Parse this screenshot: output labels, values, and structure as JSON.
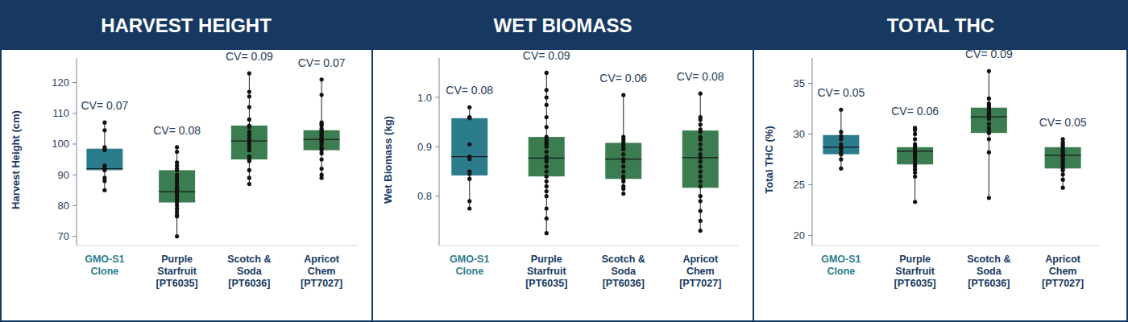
{
  "chart_data": [
    {
      "type": "box",
      "title": "HARVEST HEIGHT",
      "y_label": "Harvest Height (cm)",
      "categories": [
        "GMO-S1\nClone",
        "Purple\nStarfruit\n[PT6035]",
        "Scotch &\nSoda\n[PT6036]",
        "Apricot\nChem\n[PT7027]"
      ],
      "colors": [
        "#2b7d8e",
        "#3b7d50",
        "#3b7d50",
        "#3b7d50"
      ],
      "boxes": [
        {
          "min": 85,
          "q1": 91.5,
          "median": 92,
          "q3": 98.5,
          "max": 107
        },
        {
          "min": 70,
          "q1": 81,
          "median": 84.5,
          "q3": 91.5,
          "max": 99
        },
        {
          "min": 87,
          "q1": 95,
          "median": 101,
          "q3": 106,
          "max": 123
        },
        {
          "min": 89,
          "q1": 98,
          "median": 101.5,
          "q3": 104.5,
          "max": 121
        }
      ],
      "points": [
        [
          107,
          104.5,
          99,
          98.5,
          98,
          93,
          92,
          92,
          91.5,
          89,
          88,
          85
        ],
        [
          99,
          97.5,
          94,
          93,
          92,
          91.5,
          90,
          89,
          88,
          87,
          86,
          85.5,
          85,
          84.5,
          84,
          83,
          82,
          81.5,
          81,
          80,
          79,
          78,
          77,
          76.5,
          70
        ],
        [
          123,
          117,
          115.5,
          112,
          108,
          106,
          105.5,
          104,
          103,
          102,
          101,
          100,
          99,
          98,
          96,
          95,
          94.5,
          91.5,
          89,
          87
        ],
        [
          121,
          116,
          107,
          106.5,
          106,
          105,
          104.5,
          104,
          103.5,
          103,
          102.5,
          102,
          101.5,
          101,
          100.5,
          100,
          99,
          98.5,
          98,
          97,
          95,
          92,
          90,
          89
        ]
      ],
      "annotations": [
        "CV= 0.07",
        "CV= 0.08",
        "CV= 0.09",
        "CV= 0.07"
      ],
      "ylim": [
        67,
        128
      ],
      "yticks": [
        70,
        80,
        90,
        100,
        110,
        120
      ],
      "grid": false
    },
    {
      "type": "box",
      "title": "WET BIOMASS",
      "y_label": "Wet Biomass (kg)",
      "categories": [
        "GMO-S1\nClone",
        "Purple\nStarfruit\n[PT6035]",
        "Scotch &\nSoda\n[PT6036]",
        "Apricot\nChem\n[PT7027]"
      ],
      "colors": [
        "#2b7d8e",
        "#3b7d50",
        "#3b7d50",
        "#3b7d50"
      ],
      "boxes": [
        {
          "min": 0.775,
          "q1": 0.842,
          "median": 0.88,
          "q3": 0.958,
          "max": 0.98
        },
        {
          "min": 0.725,
          "q1": 0.84,
          "median": 0.877,
          "q3": 0.92,
          "max": 1.05
        },
        {
          "min": 0.805,
          "q1": 0.835,
          "median": 0.875,
          "q3": 0.908,
          "max": 1.005
        },
        {
          "min": 0.73,
          "q1": 0.817,
          "median": 0.878,
          "q3": 0.933,
          "max": 1.008
        }
      ],
      "points": [
        [
          0.98,
          0.96,
          0.958,
          0.905,
          0.88,
          0.875,
          0.85,
          0.845,
          0.835,
          0.79,
          0.775
        ],
        [
          1.05,
          1.015,
          1.0,
          0.985,
          0.96,
          0.94,
          0.92,
          0.915,
          0.91,
          0.905,
          0.9,
          0.89,
          0.88,
          0.875,
          0.87,
          0.86,
          0.85,
          0.84,
          0.83,
          0.82,
          0.81,
          0.8,
          0.775,
          0.755,
          0.725
        ],
        [
          1.005,
          0.92,
          0.915,
          0.91,
          0.905,
          0.9,
          0.895,
          0.885,
          0.875,
          0.87,
          0.86,
          0.85,
          0.84,
          0.835,
          0.83,
          0.82,
          0.815,
          0.805
        ],
        [
          1.008,
          0.96,
          0.955,
          0.945,
          0.935,
          0.93,
          0.92,
          0.915,
          0.905,
          0.895,
          0.885,
          0.878,
          0.87,
          0.86,
          0.85,
          0.84,
          0.83,
          0.82,
          0.8,
          0.79,
          0.77,
          0.75,
          0.73
        ]
      ],
      "annotations": [
        "CV= 0.08",
        "CV= 0.09",
        "CV= 0.06",
        "CV= 0.08"
      ],
      "ylim": [
        0.7,
        1.08
      ],
      "yticks": [
        0.8,
        0.9,
        {
          "value": 1,
          "label": "1.0"
        }
      ],
      "grid": false
    },
    {
      "type": "box",
      "title": "TOTAL THC",
      "y_label": "Total THC (%)",
      "categories": [
        "GMO-S1\nClone",
        "Purple\nStarfruit\n[PT6035]",
        "Scotch &\nSoda\n[PT6036]",
        "Apricot\nChem\n[PT7027]"
      ],
      "colors": [
        "#2b7d8e",
        "#3b7d50",
        "#3b7d50",
        "#3b7d50"
      ],
      "boxes": [
        {
          "min": 26.6,
          "q1": 28,
          "median": 28.7,
          "q3": 29.9,
          "max": 32.4
        },
        {
          "min": 23.3,
          "q1": 27,
          "median": 28.3,
          "q3": 28.7,
          "max": 30.6
        },
        {
          "min": 23.7,
          "q1": 30.1,
          "median": 31.7,
          "q3": 32.6,
          "max": 36.2
        },
        {
          "min": 24.7,
          "q1": 26.6,
          "median": 27.9,
          "q3": 28.7,
          "max": 29.5
        }
      ],
      "points": [
        [
          32.4,
          30.2,
          29.8,
          29.5,
          29,
          28.7,
          28.5,
          28.2,
          28,
          27.5,
          26.6
        ],
        [
          30.6,
          30.4,
          30,
          29.5,
          29,
          28.8,
          28.6,
          28.4,
          28.3,
          28.2,
          28,
          27.8,
          27.5,
          27.3,
          27,
          26.8,
          26.5,
          26.2,
          25.8,
          23.3
        ],
        [
          36.2,
          33.5,
          33,
          32.8,
          32.6,
          32.4,
          32.2,
          32,
          31.8,
          31.7,
          31.5,
          31,
          30.6,
          30.3,
          30.1,
          29.5,
          28.2,
          23.7
        ],
        [
          29.5,
          29.2,
          29,
          28.8,
          28.6,
          28.4,
          28.2,
          28,
          27.9,
          27.8,
          27.6,
          27.4,
          27.2,
          27,
          26.8,
          26.6,
          26.4,
          26,
          25.5,
          24.7
        ]
      ],
      "annotations": [
        "CV= 0.05",
        "CV= 0.06",
        "CV= 0.09",
        "CV= 0.05"
      ],
      "ylim": [
        19,
        37.5
      ],
      "yticks": [
        20,
        25,
        30,
        35
      ],
      "grid": false
    }
  ]
}
